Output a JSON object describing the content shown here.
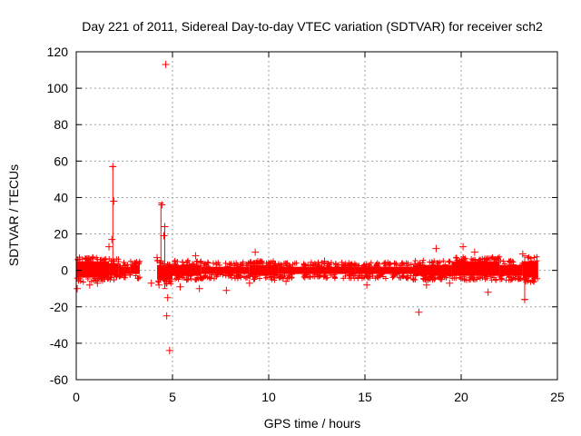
{
  "chart_data": {
    "type": "scatter",
    "title": "Day 221 of 2011, Sidereal Day-to-day VTEC variation (SDTVAR) for receiver sch2",
    "xlabel": "GPS time / hours",
    "ylabel": "SDTVAR / TECUs",
    "xlim": [
      0,
      25
    ],
    "ylim": [
      -60,
      120
    ],
    "xticks": [
      0,
      5,
      10,
      15,
      20,
      25
    ],
    "yticks": [
      -60,
      -40,
      -20,
      0,
      20,
      40,
      60,
      80,
      100,
      120
    ],
    "grid": true,
    "series_color": "#ff0000",
    "marker": "+",
    "band_segments": [
      {
        "x0": 0.0,
        "x1": 1.7,
        "low": -4,
        "high": 5
      },
      {
        "x0": 1.7,
        "x1": 2.2,
        "low": -3,
        "high": 4
      },
      {
        "x0": 2.2,
        "x1": 2.8,
        "low": -2,
        "high": 2
      },
      {
        "x0": 2.8,
        "x1": 3.3,
        "low": -2,
        "high": 3
      },
      {
        "x0": 4.2,
        "x1": 5.0,
        "low": -5,
        "high": 3
      },
      {
        "x0": 5.0,
        "x1": 6.5,
        "low": -3,
        "high": 3
      },
      {
        "x0": 6.5,
        "x1": 9.0,
        "low": -2,
        "high": 2
      },
      {
        "x0": 9.0,
        "x1": 10.5,
        "low": -3,
        "high": 3
      },
      {
        "x0": 10.5,
        "x1": 14.5,
        "low": -2,
        "high": 2
      },
      {
        "x0": 14.5,
        "x1": 17.5,
        "low": -2,
        "high": 2
      },
      {
        "x0": 17.5,
        "x1": 19.5,
        "low": -3,
        "high": 3
      },
      {
        "x0": 19.5,
        "x1": 22.0,
        "low": -3,
        "high": 5
      },
      {
        "x0": 22.0,
        "x1": 23.2,
        "low": -3,
        "high": 3
      },
      {
        "x0": 23.2,
        "x1": 24.0,
        "low": -4,
        "high": 5
      }
    ],
    "error_bars": [
      {
        "x": 1.9,
        "low": 0,
        "high": 57
      },
      {
        "x": 4.4,
        "low": 0,
        "high": 37
      },
      {
        "x": 4.6,
        "low": -10,
        "high": 24
      },
      {
        "x": 23.3,
        "low": -16,
        "high": 8
      }
    ],
    "outliers": [
      {
        "x": 4.65,
        "y": 113
      },
      {
        "x": 1.9,
        "y": 57
      },
      {
        "x": 1.95,
        "y": 38
      },
      {
        "x": 4.45,
        "y": 36
      },
      {
        "x": 4.6,
        "y": 24
      },
      {
        "x": 4.55,
        "y": 19
      },
      {
        "x": 1.85,
        "y": 17
      },
      {
        "x": 1.7,
        "y": 13
      },
      {
        "x": 4.2,
        "y": 7
      },
      {
        "x": 4.7,
        "y": -25
      },
      {
        "x": 4.85,
        "y": -44
      },
      {
        "x": 4.3,
        "y": -8
      },
      {
        "x": 4.75,
        "y": -15
      },
      {
        "x": 5.4,
        "y": -9
      },
      {
        "x": 6.2,
        "y": 8
      },
      {
        "x": 6.4,
        "y": -10
      },
      {
        "x": 7.8,
        "y": -11
      },
      {
        "x": 9.3,
        "y": 10
      },
      {
        "x": 9.0,
        "y": -7
      },
      {
        "x": 10.9,
        "y": -6
      },
      {
        "x": 12.9,
        "y": 5
      },
      {
        "x": 15.1,
        "y": -8
      },
      {
        "x": 17.8,
        "y": -23
      },
      {
        "x": 18.2,
        "y": -8
      },
      {
        "x": 18.7,
        "y": 12
      },
      {
        "x": 19.4,
        "y": -7
      },
      {
        "x": 20.1,
        "y": 13
      },
      {
        "x": 20.7,
        "y": 10
      },
      {
        "x": 21.4,
        "y": -12
      },
      {
        "x": 22.6,
        "y": 3
      },
      {
        "x": 23.3,
        "y": -16
      },
      {
        "x": 23.2,
        "y": 9
      },
      {
        "x": 0.05,
        "y": -10
      },
      {
        "x": 0.7,
        "y": -8
      },
      {
        "x": 1.1,
        "y": -7
      },
      {
        "x": 2.9,
        "y": 3
      },
      {
        "x": 3.9,
        "y": -7
      }
    ]
  }
}
